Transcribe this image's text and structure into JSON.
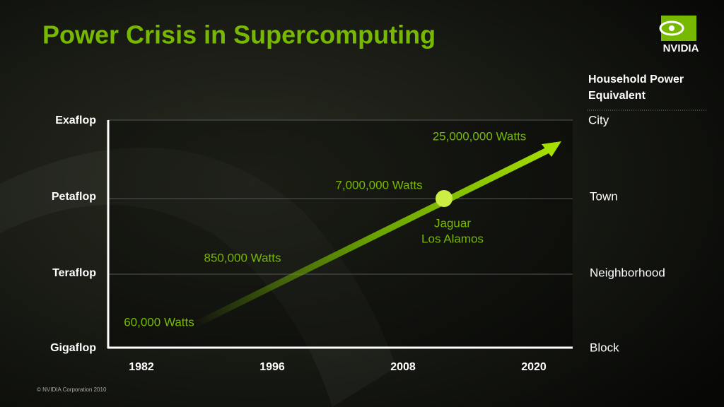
{
  "header": {
    "title": "Power Crisis in Supercomputing",
    "logo": "NVIDIA"
  },
  "legend": {
    "title_lines": [
      "Household Power",
      "Equivalent"
    ]
  },
  "chart": {
    "y_labels": [
      "Gigaflop",
      "Teraflop",
      "Petaflop",
      "Exaflop"
    ],
    "x_labels": [
      "1982",
      "1996",
      "2008",
      "2020"
    ],
    "equivalents": [
      "Block",
      "Neighborhood",
      "Town",
      "City"
    ],
    "annotations": [
      "60,000 Watts",
      "850,000 Watts",
      "7,000,000 Watts",
      "25,000,000 Watts"
    ],
    "marker_label": [
      "Jaguar",
      "Los Alamos"
    ]
  },
  "footer": "©  NVIDIA Corporation 2010"
}
